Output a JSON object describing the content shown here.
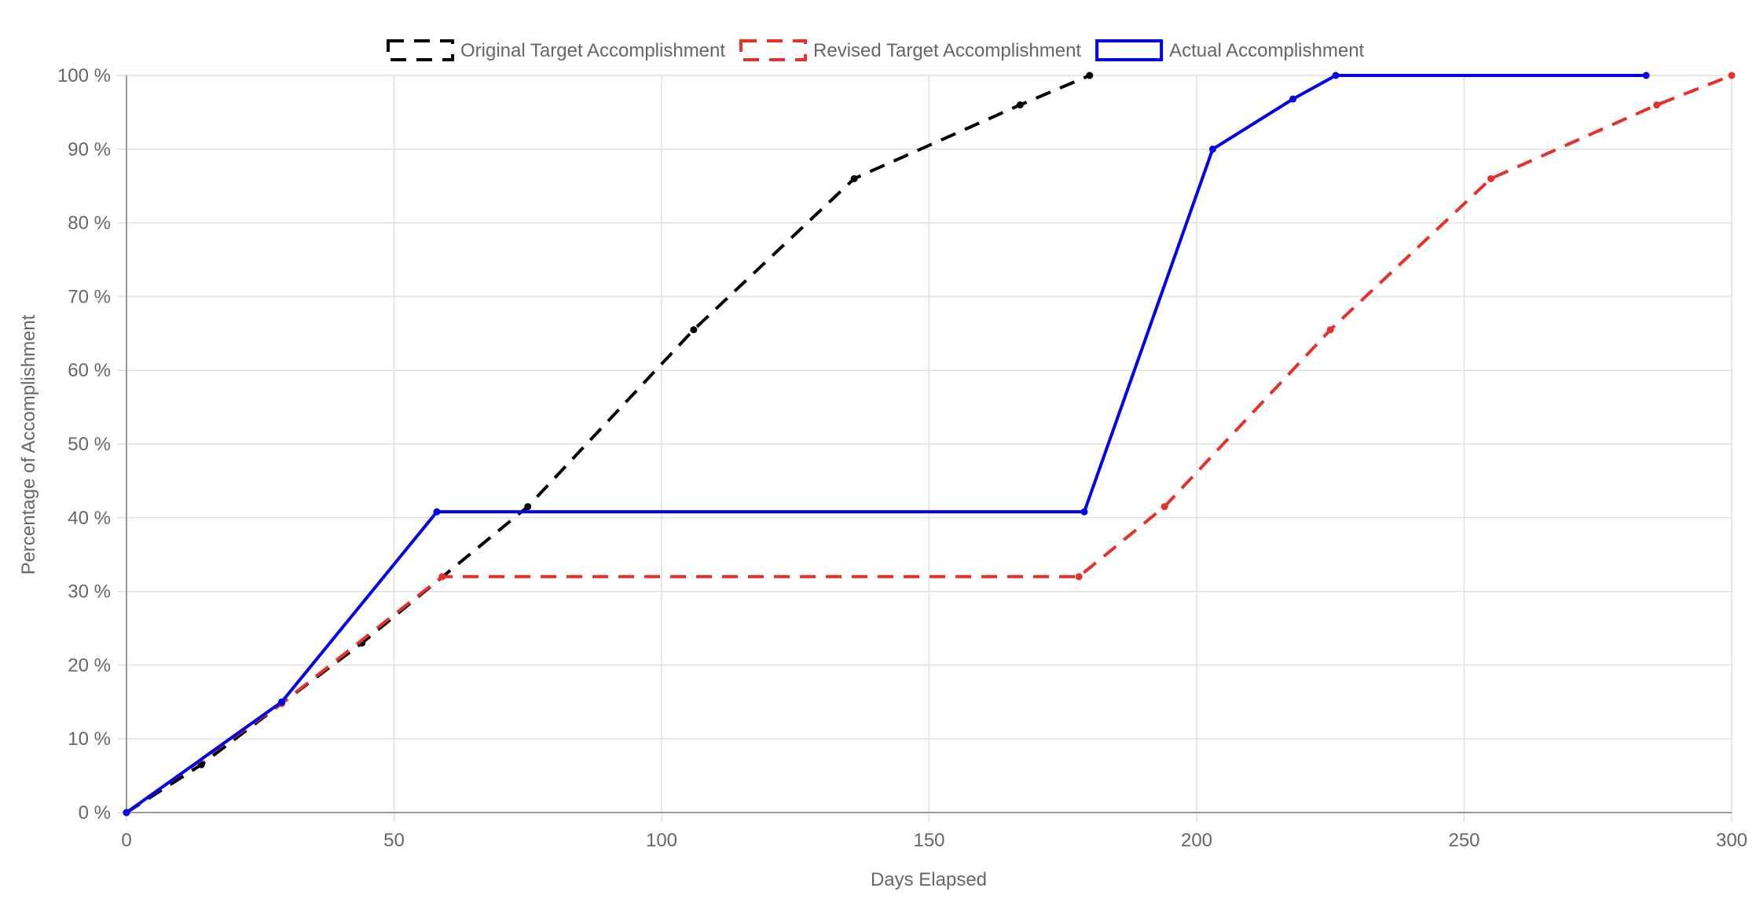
{
  "chart_data": {
    "type": "line",
    "title": "",
    "xlabel": "Days Elapsed",
    "ylabel": "Percentage of Accomplishment",
    "xlim": [
      0,
      300
    ],
    "ylim": [
      0,
      100
    ],
    "x_ticks": [
      0,
      50,
      100,
      150,
      200,
      250,
      300
    ],
    "y_ticks": [
      0,
      10,
      20,
      30,
      40,
      50,
      60,
      70,
      80,
      90,
      100
    ],
    "y_tick_suffix": " %",
    "grid": true,
    "legend_position": "top",
    "series": [
      {
        "name": "Original Target Accomplishment",
        "color": "#000000",
        "dashed": true,
        "points": [
          [
            0,
            0
          ],
          [
            14,
            6.5
          ],
          [
            29,
            14.8
          ],
          [
            44,
            23
          ],
          [
            75,
            41.5
          ],
          [
            106,
            65.5
          ],
          [
            136,
            86
          ],
          [
            167,
            96
          ],
          [
            180,
            100
          ]
        ]
      },
      {
        "name": "Revised Target Accomplishment",
        "color": "#e8302a",
        "dashed": true,
        "points": [
          [
            0,
            0
          ],
          [
            29,
            14.8
          ],
          [
            59,
            32
          ],
          [
            178,
            32
          ],
          [
            194,
            41.5
          ],
          [
            225,
            65.5
          ],
          [
            255,
            86
          ],
          [
            286,
            96
          ],
          [
            300,
            100
          ]
        ]
      },
      {
        "name": "Actual Accomplishment",
        "color": "#0000ee",
        "dashed": false,
        "points": [
          [
            0,
            0
          ],
          [
            29,
            15
          ],
          [
            58,
            40.8
          ],
          [
            179,
            40.8
          ],
          [
            203,
            90
          ],
          [
            218,
            96.8
          ],
          [
            226,
            100
          ],
          [
            284,
            100
          ]
        ]
      }
    ]
  }
}
